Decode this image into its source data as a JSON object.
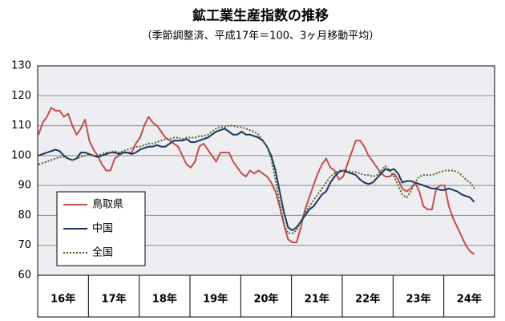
{
  "chart_data": {
    "type": "line",
    "title": "鉱工業生産指数の推移",
    "subtitle": "（季節調整済、平成17年＝100、3ヶ月移動平均）",
    "categories": [
      null,
      null,
      null,
      null,
      null,
      null,
      "16年",
      null,
      null,
      null,
      null,
      null,
      null,
      null,
      null,
      null,
      null,
      null,
      "17年",
      null,
      null,
      null,
      null,
      null,
      null,
      null,
      null,
      null,
      null,
      null,
      "18年",
      null,
      null,
      null,
      null,
      null,
      null,
      null,
      null,
      null,
      null,
      null,
      "19年",
      null,
      null,
      null,
      null,
      null,
      null,
      null,
      null,
      null,
      null,
      null,
      "20年",
      null,
      null,
      null,
      null,
      null,
      null,
      null,
      null,
      null,
      null,
      null,
      "21年",
      null,
      null,
      null,
      null,
      null,
      null,
      null,
      null,
      null,
      null,
      null,
      "22年",
      null,
      null,
      null,
      null,
      null,
      null,
      null,
      null,
      null,
      null,
      null,
      "23年",
      null,
      null,
      null,
      null,
      null,
      null,
      null,
      null,
      null,
      null,
      null,
      "24年",
      null
    ],
    "series": [
      {
        "name": "鳥取県",
        "color": "#c0504d",
        "dash": "none",
        "values": [
          107,
          111,
          113,
          116,
          115,
          115,
          113,
          114,
          110,
          107,
          109,
          112,
          105,
          102,
          100,
          97,
          95,
          95,
          99,
          100,
          101,
          101,
          101,
          104,
          106,
          110,
          113,
          111,
          110,
          108,
          106,
          105,
          104,
          103,
          100,
          97,
          96,
          98,
          103,
          104,
          102,
          100,
          98,
          101,
          101,
          101,
          98,
          96,
          94,
          93,
          95,
          94,
          95,
          94,
          93,
          91,
          88,
          83,
          77,
          72,
          71,
          71,
          76,
          82,
          86,
          90,
          94,
          97,
          99,
          96,
          95,
          92,
          93,
          97,
          101,
          105,
          105,
          103,
          100,
          98,
          96,
          94,
          93,
          93,
          94,
          92,
          89,
          88,
          89,
          91,
          88,
          83,
          82,
          82,
          89,
          90,
          90,
          83,
          79,
          76,
          73,
          70,
          68,
          67
        ]
      },
      {
        "name": "中国",
        "color": "#17375e",
        "dash": "none",
        "values": [
          100,
          100.5,
          101,
          101.5,
          102,
          101.5,
          100,
          99,
          98.5,
          99,
          101,
          101,
          100.5,
          100,
          99.5,
          100,
          100.5,
          101,
          101,
          100.5,
          101,
          101,
          100.5,
          101,
          102,
          102.5,
          103,
          103,
          103.5,
          103,
          103,
          104,
          105,
          105,
          105,
          105.5,
          104.5,
          104.5,
          105,
          105.5,
          106,
          107,
          108,
          108.5,
          109,
          108,
          107,
          107,
          108,
          107,
          107,
          106.5,
          106,
          105,
          103,
          100,
          95,
          88,
          81,
          76,
          75,
          76,
          78,
          80,
          82,
          83,
          85,
          87,
          88,
          91,
          93,
          94.5,
          95,
          94.5,
          94,
          93.5,
          92,
          91,
          90.5,
          91,
          92.5,
          94,
          95.5,
          95,
          95.5,
          94,
          91,
          91.5,
          91.5,
          91,
          90.5,
          90,
          89.5,
          89,
          89,
          88.5,
          88.5,
          89,
          88.5,
          88,
          87,
          86.5,
          86,
          84.5
        ]
      },
      {
        "name": "全国",
        "color": "#4f6228",
        "dash": "2 2",
        "values": [
          97,
          97.5,
          98,
          98.5,
          99,
          99.5,
          99.5,
          99,
          98.5,
          99,
          99.5,
          100,
          100.5,
          100,
          100,
          100.5,
          101,
          101,
          101.5,
          101,
          101.5,
          102,
          102.5,
          103,
          103,
          103.5,
          104,
          104,
          104.5,
          105,
          105.5,
          105.5,
          106,
          106,
          105.5,
          106,
          106,
          106,
          106.5,
          106.5,
          107,
          108,
          109,
          109.5,
          109.5,
          110,
          110,
          109.5,
          109.5,
          109,
          108.5,
          108,
          107,
          105,
          103,
          99,
          92,
          84,
          77,
          74,
          74,
          75,
          78,
          81,
          83,
          85,
          87,
          89,
          91,
          93,
          94,
          95,
          95,
          95,
          94.5,
          94.5,
          94,
          93.5,
          93.5,
          93,
          93.5,
          95,
          96.5,
          95,
          93,
          90,
          87,
          86,
          88,
          91,
          93,
          93.5,
          93.5,
          93.5,
          94,
          94.5,
          95,
          95,
          95,
          94.5,
          93.5,
          92,
          91,
          89
        ]
      }
    ],
    "ylim": [
      60,
      130
    ],
    "yticks": [
      60,
      70,
      80,
      90,
      100,
      110,
      120,
      130
    ],
    "grid": true,
    "legend": "lower left",
    "plot_background": "#eeedf2"
  }
}
